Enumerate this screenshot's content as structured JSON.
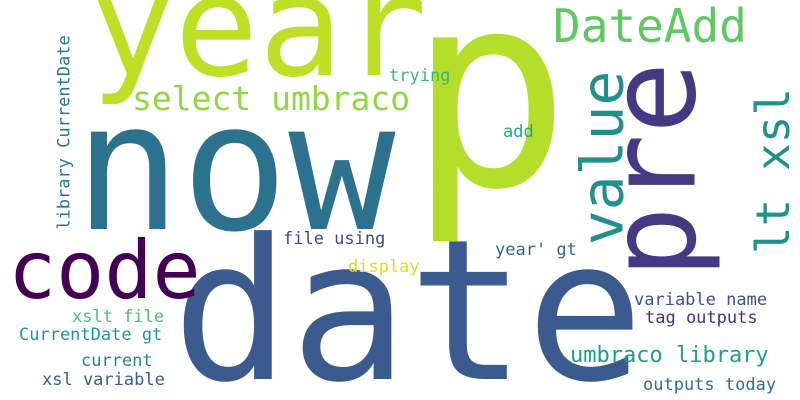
{
  "words": {
    "p": {
      "text": "p",
      "color": "#b5de2b"
    },
    "now": {
      "text": "now",
      "color": "#2c728e"
    },
    "date": {
      "text": "date",
      "color": "#3b5a8e"
    },
    "year": {
      "text": "year",
      "color": "#bddf26"
    },
    "pre": {
      "text": "pre",
      "color": "#443a83"
    },
    "code": {
      "text": "code",
      "color": "#440154"
    },
    "value": {
      "text": "value",
      "color": "#21908d"
    },
    "dateadd": {
      "text": "DateAdd",
      "color": "#5ec962"
    },
    "select_umbraco": {
      "text": "select umbraco",
      "color": "#8fd744"
    },
    "lt_xsl": {
      "text": "lt xsl",
      "color": "#21918c"
    },
    "umbraco_library": {
      "text": "umbraco library",
      "color": "#1f9e89"
    },
    "library_currentdate": {
      "text": "library CurrentDate",
      "color": "#2a788e"
    },
    "file_using": {
      "text": "file using",
      "color": "#3e4a89"
    },
    "trying": {
      "text": "trying",
      "color": "#35b779"
    },
    "add": {
      "text": "add",
      "color": "#22a884"
    },
    "year_gt": {
      "text": "year' gt",
      "color": "#31688e"
    },
    "display": {
      "text": "display",
      "color": "#d8e219"
    },
    "xslt_file": {
      "text": "xslt file",
      "color": "#4ac16d"
    },
    "variable_name": {
      "text": "variable name",
      "color": "#3b528b"
    },
    "tag_outputs": {
      "text": "tag outputs",
      "color": "#46327e"
    },
    "currentdate_gt": {
      "text": "CurrentDate gt",
      "color": "#1e9b8a"
    },
    "current": {
      "text": "current",
      "color": "#25858e"
    },
    "xsl_variable": {
      "text": "xsl variable",
      "color": "#355f8d"
    },
    "outputs_today": {
      "text": "outputs today",
      "color": "#2d708e"
    }
  }
}
